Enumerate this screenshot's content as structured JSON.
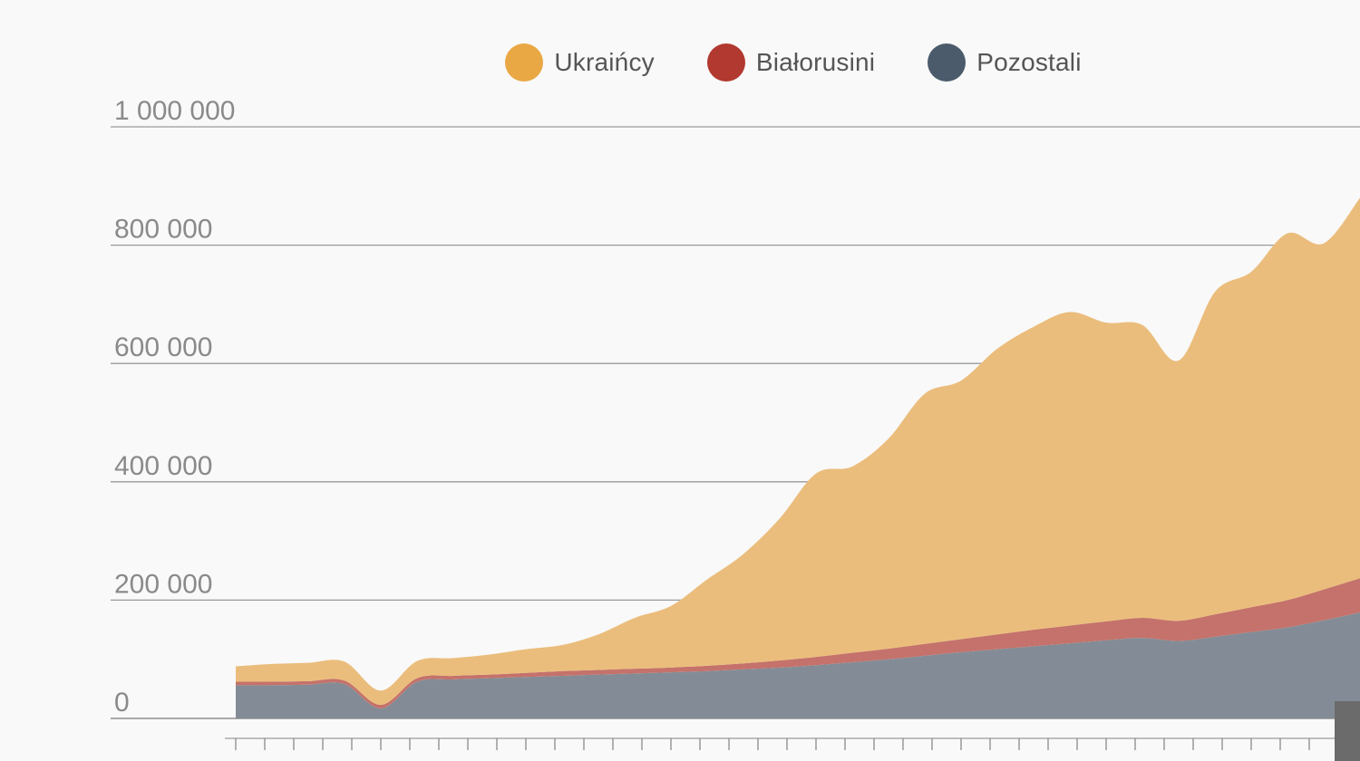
{
  "chart_data": {
    "type": "area",
    "stacked": true,
    "yticks": [
      "0",
      "200 000",
      "400 000",
      "600 000",
      "800 000",
      "1 000 000"
    ],
    "ytick_values": [
      0,
      200000,
      400000,
      600000,
      800000,
      1000000
    ],
    "ylim": [
      0,
      1000000
    ],
    "grid": true,
    "legend_position": "top",
    "x_tick_count": 39,
    "series": [
      {
        "name": "Pozostali",
        "color": "#4b5b6b",
        "fill": "#838c96",
        "values": [
          56000,
          56000,
          57000,
          58000,
          17000,
          62000,
          66000,
          68000,
          70000,
          72000,
          74000,
          76000,
          78000,
          80000,
          83000,
          86000,
          90000,
          95000,
          100000,
          106000,
          112000,
          117000,
          122000,
          127000,
          132000,
          136000,
          131000,
          138000,
          146000,
          154000,
          166000,
          179000
        ]
      },
      {
        "name": "Białorusini",
        "color": "#b1392f",
        "fill": "#c4726b",
        "values": [
          6000,
          6000,
          6000,
          6000,
          6000,
          6000,
          6000,
          6000,
          7000,
          8000,
          8000,
          8000,
          8000,
          9000,
          10000,
          12000,
          14000,
          16000,
          18000,
          20000,
          22000,
          25000,
          28000,
          30000,
          32000,
          34000,
          34000,
          38000,
          42000,
          46000,
          52000,
          58000
        ]
      },
      {
        "name": "Ukraińcy",
        "color": "#e9a844",
        "fill": "#ebbd7c",
        "values": [
          26000,
          30000,
          31000,
          32000,
          24000,
          29000,
          30000,
          34000,
          40000,
          44000,
          60000,
          86000,
          104000,
          146000,
          185000,
          240000,
          310000,
          315000,
          355000,
          423000,
          437000,
          483000,
          512000,
          530000,
          505000,
          495000,
          440000,
          545000,
          567000,
          620000,
          585000,
          643000
        ]
      }
    ]
  }
}
